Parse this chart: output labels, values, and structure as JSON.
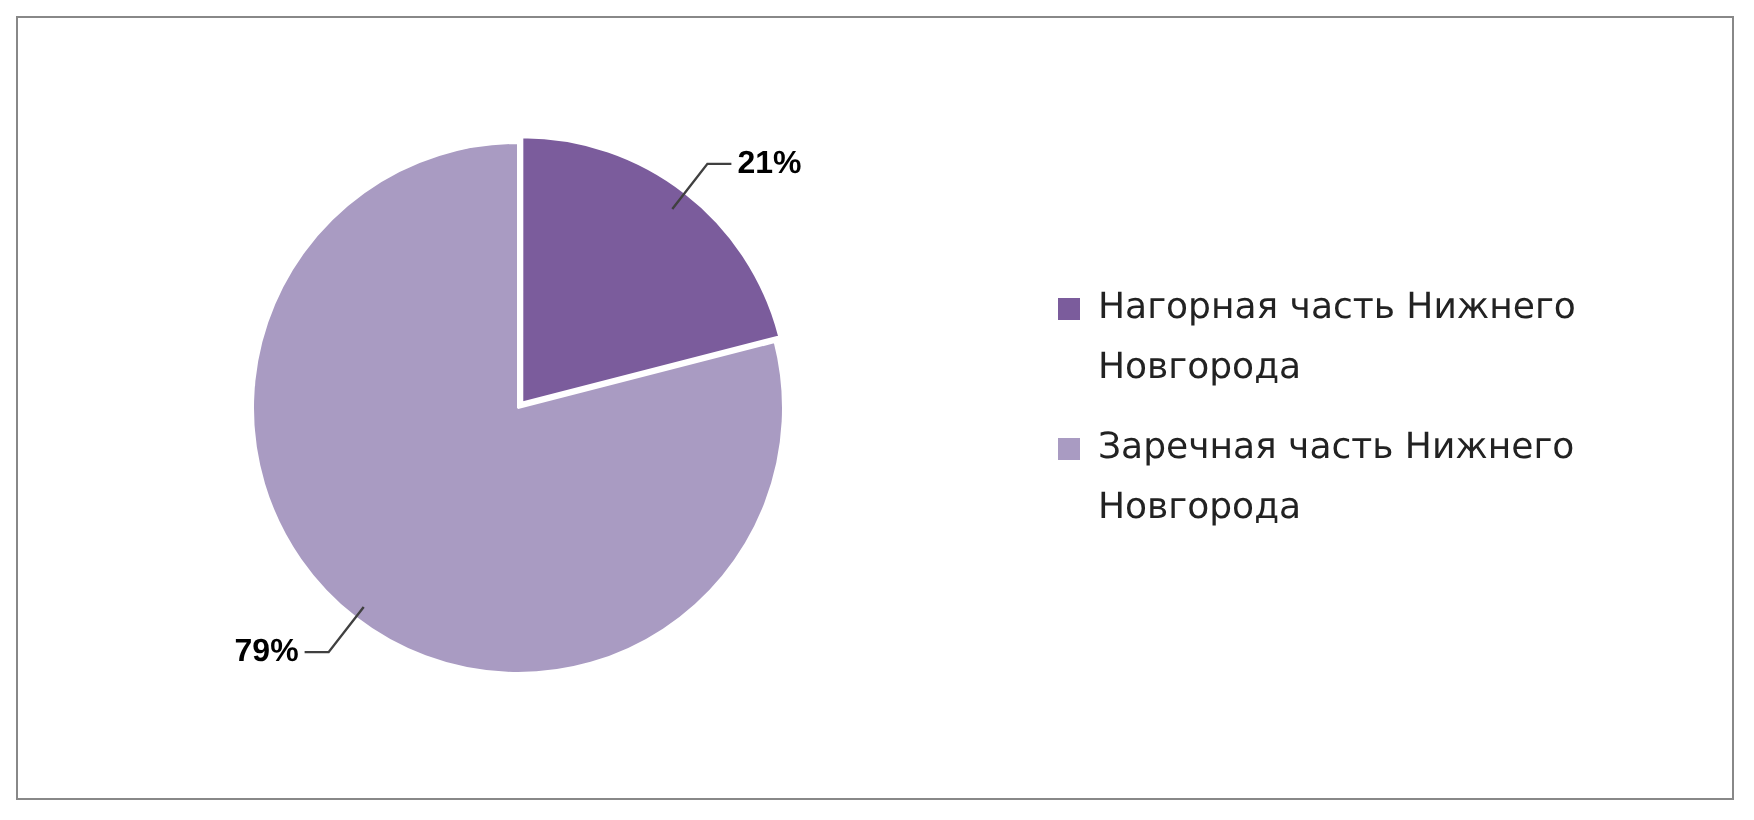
{
  "chart_data": {
    "type": "pie",
    "categories": [
      "Нагорная часть Нижнего Новгорода",
      "Заречная часть Нижнего Новгорода"
    ],
    "values": [
      21,
      79
    ],
    "colors": [
      "#7b5c9c",
      "#a99bc2"
    ],
    "value_labels": [
      "21%",
      "79%"
    ],
    "legend": "right"
  }
}
